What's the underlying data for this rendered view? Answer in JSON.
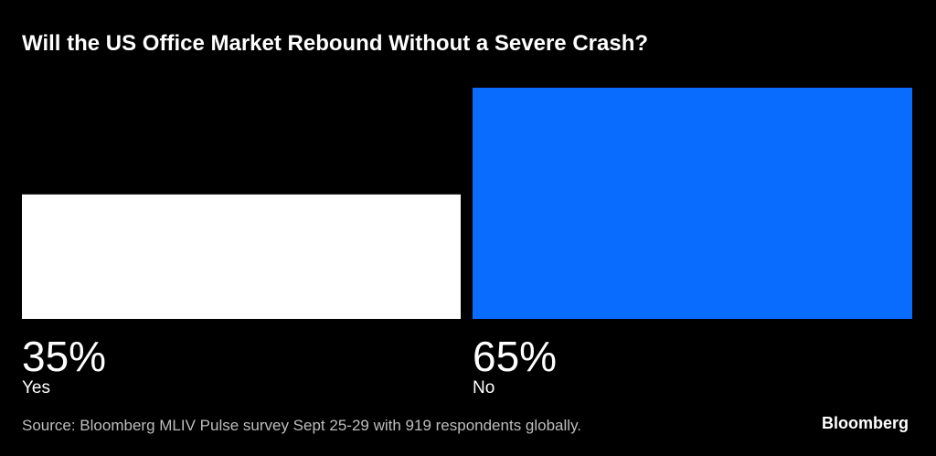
{
  "title": "Will the US Office Market Rebound Without a Severe Crash?",
  "source": "Source: Bloomberg MLIV Pulse survey Sept 25-29 with 919 respondents globally.",
  "brand": "Bloomberg",
  "chart_data": {
    "type": "bar",
    "title": "Will the US Office Market Rebound Without a Severe Crash?",
    "categories": [
      "Yes",
      "No"
    ],
    "values": [
      35,
      65
    ],
    "value_labels": [
      "35%",
      "65%"
    ],
    "colors": [
      "#ffffff",
      "#0a6cff"
    ],
    "ylim": [
      0,
      65
    ],
    "grid": false,
    "legend": "none"
  }
}
